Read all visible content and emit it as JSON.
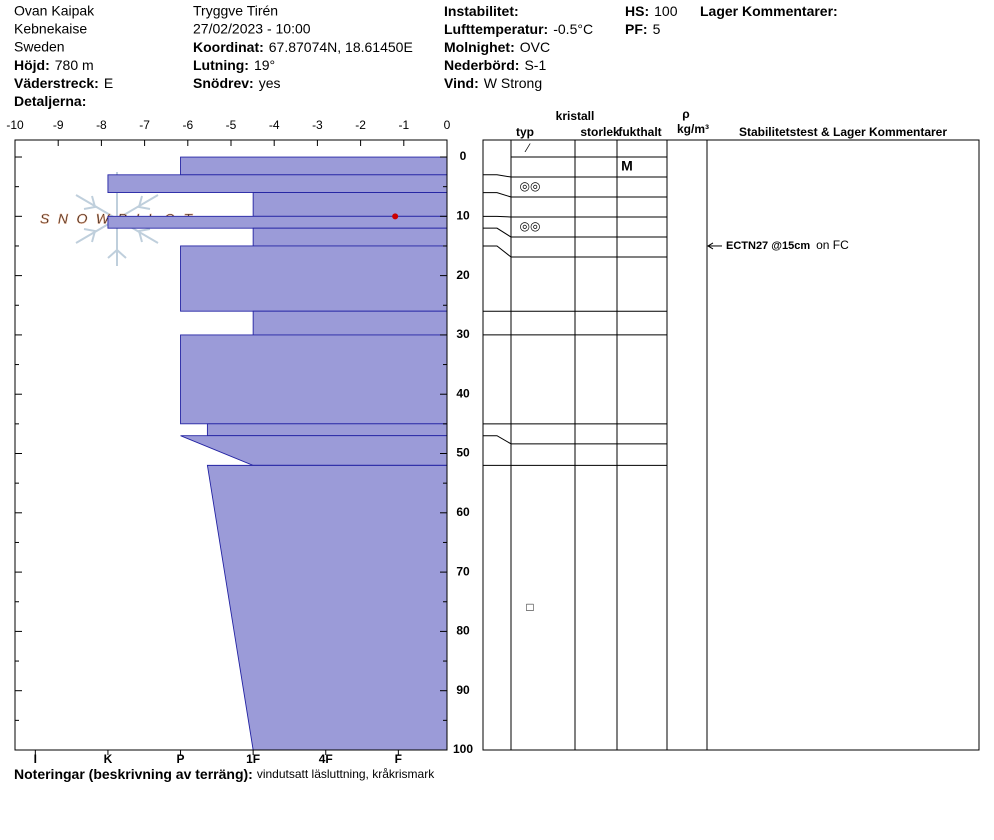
{
  "header": {
    "location": "Ovan Kaipak",
    "range": "Kebnekaise",
    "country": "Sweden",
    "elevation": {
      "label": "Höjd:",
      "value": "780 m"
    },
    "aspect": {
      "label": "Väderstreck:",
      "value": "E"
    },
    "details": {
      "label": "Detaljerna:"
    },
    "observer": "Tryggve  Tirén",
    "datetime": "27/02/2023 - 10:00",
    "coordinates": {
      "label": "Koordinat:",
      "value": "67.87074N, 18.61450E"
    },
    "slope": {
      "label": "Lutning:",
      "value": "19°"
    },
    "wind_loading": {
      "label": "Snödrev:",
      "value": "yes"
    },
    "instability": {
      "label": "Instabilitet:"
    },
    "air_temp": {
      "label": "Lufttemperatur:",
      "value": "-0.5°C"
    },
    "sky": {
      "label": "Molnighet:",
      "value": "OVC"
    },
    "precip": {
      "label": "Nederbörd:",
      "value": "S-1"
    },
    "wind": {
      "label": "Vind:",
      "value": "W Strong"
    },
    "hs": {
      "label": "HS:",
      "value": 100
    },
    "pf": {
      "label": "PF:",
      "value": 5
    },
    "layer_comments": {
      "label": "Lager Kommentarer:"
    }
  },
  "logo": "SNOWPILOT",
  "chart_data": {
    "type": "snow-profile",
    "xlim": [
      -10,
      0
    ],
    "xticks": [
      -10,
      -9,
      -8,
      -7,
      -6,
      -5,
      -4,
      -3,
      -2,
      -1,
      0
    ],
    "hlim": [
      0.33,
      6.28
    ],
    "hticks": [
      {
        "value": 6,
        "label": "I"
      },
      {
        "value": 5,
        "label": "K"
      },
      {
        "value": 4,
        "label": "P"
      },
      {
        "value": 3,
        "label": "1F"
      },
      {
        "value": 2,
        "label": "4F"
      },
      {
        "value": 1,
        "label": "F"
      }
    ],
    "ylim": [
      -2.87,
      100
    ],
    "yticks": [
      0,
      10,
      20,
      30,
      40,
      50,
      60,
      70,
      80,
      90,
      100
    ],
    "yminor": [
      5,
      15,
      25,
      35,
      45,
      55,
      65,
      75,
      85,
      95
    ],
    "bar_color": "#9b9bd8",
    "edge_color": "#2323a3",
    "layers": [
      {
        "top": 0,
        "bottom": 3,
        "hardness_top": 4,
        "hardness_bottom": 4,
        "moisture": "M"
      },
      {
        "top": 3,
        "bottom": 6,
        "hardness_top": 5,
        "hardness_bottom": 5,
        "form": "◎◎"
      },
      {
        "top": 6,
        "bottom": 10,
        "hardness_top": 3,
        "hardness_bottom": 3
      },
      {
        "top": 10,
        "bottom": 12,
        "hardness_top": 5,
        "hardness_bottom": 5,
        "form": "◎◎"
      },
      {
        "top": 12,
        "bottom": 15,
        "hardness_top": 3,
        "hardness_bottom": 3
      },
      {
        "top": 15,
        "bottom": 26,
        "hardness_top": 4,
        "hardness_bottom": 4
      },
      {
        "top": 26,
        "bottom": 30,
        "hardness_top": 3,
        "hardness_bottom": 3
      },
      {
        "top": 30,
        "bottom": 45,
        "hardness_top": 4,
        "hardness_bottom": 4
      },
      {
        "top": 45,
        "bottom": 47,
        "hardness_top": 3.63,
        "hardness_bottom": 3.63
      },
      {
        "top": 47,
        "bottom": 52,
        "hardness_top": 4,
        "hardness_bottom": 3
      },
      {
        "top": 52,
        "bottom": 100,
        "hardness_top": 3.63,
        "hardness_bottom": 3,
        "form": "□"
      }
    ],
    "surface_form": "⁄",
    "temperatures": [
      {
        "depth": 10,
        "temp": -1.2
      }
    ],
    "temp_color": "#cc0000",
    "columns": {
      "crystal": "kristall",
      "form": "typ",
      "size": "storlek",
      "moisture": "fukthalt",
      "density": "ρ",
      "density_unit": "kg/m³",
      "comments": "Stabilitetstest & Lager Kommentarer"
    },
    "tests": [
      {
        "depth": 15,
        "test": "ECTN27 @15cm",
        "comment": "on FC"
      }
    ]
  },
  "notes": {
    "label": "Noteringar (beskrivning av terräng):",
    "text": "vindutsatt läsluttning, kråkrismark"
  }
}
